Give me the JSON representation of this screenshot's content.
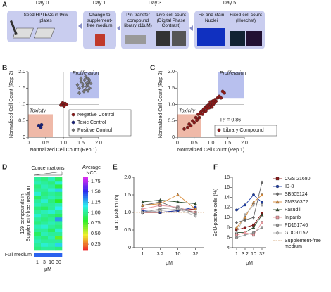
{
  "workflow": {
    "panel_label": "A",
    "days": [
      "Day 0",
      "Day 1",
      "Day 3",
      "Day 5"
    ],
    "steps": [
      "Seed HPTECs in 96w plates",
      "Change to supplement-free medium",
      "Pin-transfer compound library (11uM)",
      "Live-cell count (Digital Phase Contrast)",
      "Fix and stain Nuclei",
      "Fixed-cell count (Hoechst)"
    ]
  },
  "chart_data": [
    {
      "type": "scatter",
      "panel_label": "B",
      "xlabel": "Normalized Cell Count (Rep 1)",
      "ylabel": "Normalized Cell Count (Rep 2)",
      "xlim": [
        0,
        2
      ],
      "ylim": [
        0,
        2
      ],
      "xticks": [
        0,
        0.5,
        {
          "value": 1,
          "label": "1.0"
        },
        1.5,
        {
          "value": 2,
          "label": "2.0"
        }
      ],
      "yticks": [
        0,
        0.5,
        {
          "value": 1,
          "label": "1.0"
        },
        1.5,
        {
          "value": 2,
          "label": "2.0"
        }
      ],
      "reference": 1,
      "thresholds": {
        "low": 0.7,
        "high": 1.2
      },
      "annotations": {
        "proliferation": "Proliferation",
        "toxicity": "Toxicity"
      },
      "legend": "lower right",
      "series": [
        {
          "name": "Negative Control",
          "color": "#8b1a1a",
          "marker": "circle",
          "x": [
            0.95,
            1.0,
            1.05,
            0.98,
            1.02,
            1.08,
            0.93
          ],
          "values": [
            1.0,
            0.97,
            1.03,
            1.05,
            0.95,
            1.0,
            0.98
          ]
        },
        {
          "name": "Toxic Control",
          "color": "#1a237e",
          "marker": "circle",
          "x": [
            0.32,
            0.35,
            0.38,
            0.3,
            0.36
          ],
          "values": [
            0.35,
            0.32,
            0.38,
            0.36,
            0.3
          ]
        },
        {
          "name": "Positive Control",
          "color": "#777777",
          "marker": "diamond",
          "x": [
            1.4,
            1.45,
            1.5,
            1.55,
            1.6,
            1.62,
            1.65,
            1.68,
            1.7,
            1.72,
            1.75,
            1.78,
            1.5,
            1.58,
            1.66,
            1.74,
            1.45,
            1.55,
            1.63,
            1.7
          ],
          "values": [
            1.6,
            1.5,
            1.7,
            1.55,
            1.75,
            1.45,
            1.65,
            1.8,
            1.6,
            1.7,
            1.5,
            1.65,
            1.8,
            1.4,
            1.55,
            1.75,
            1.35,
            1.62,
            1.85,
            1.42
          ]
        }
      ]
    },
    {
      "type": "scatter",
      "panel_label": "C",
      "xlabel": "Normalized Cell Count (Rep 1)",
      "ylabel": "Normalized Cell Count (Rep 2)",
      "xlim": [
        0,
        2
      ],
      "ylim": [
        0,
        2
      ],
      "xticks": [
        0,
        0.5,
        {
          "value": 1,
          "label": "1.0"
        },
        1.5,
        {
          "value": 2,
          "label": "2.0"
        }
      ],
      "yticks": [
        0,
        0.5,
        {
          "value": 1,
          "label": "1.0"
        },
        1.5,
        {
          "value": 2,
          "label": "2.0"
        }
      ],
      "reference": 1,
      "thresholds": {
        "low": 0.7,
        "high": 1.2
      },
      "annotations": {
        "proliferation": "Proliferation",
        "toxicity": "Toxicity",
        "fit": "R² = 0.86"
      },
      "legend": "lower right",
      "series": [
        {
          "name": "Library Compound",
          "color": "#8b1a1a",
          "marker": "circle",
          "x": [
            0.2,
            0.3,
            0.35,
            0.4,
            0.45,
            0.5,
            0.55,
            0.6,
            0.62,
            0.65,
            0.7,
            0.72,
            0.75,
            0.78,
            0.8,
            0.82,
            0.85,
            0.87,
            0.9,
            0.92,
            0.95,
            0.97,
            1.0,
            1.02,
            1.05,
            1.07,
            1.1,
            1.12,
            1.15,
            1.2,
            1.25,
            1.3,
            1.35,
            1.4,
            0.98,
            1.03,
            0.88,
            1.08,
            0.68,
            0.58
          ],
          "values": [
            0.25,
            0.3,
            0.4,
            0.35,
            0.5,
            0.45,
            0.6,
            0.55,
            0.7,
            0.6,
            0.72,
            0.8,
            0.7,
            0.85,
            0.78,
            0.9,
            0.8,
            0.95,
            0.88,
            0.98,
            0.9,
            1.02,
            1.0,
            0.95,
            1.1,
            1.0,
            1.05,
            1.15,
            1.1,
            1.2,
            1.25,
            1.2,
            1.4,
            1.35,
            1.08,
            0.92,
            0.95,
            1.12,
            0.75,
            0.52
          ]
        }
      ]
    },
    {
      "type": "heatmap",
      "panel_label": "D",
      "title": "Concentrations",
      "colorbar_title": [
        "Average",
        "NCC"
      ],
      "ylabel": [
        "129 compounds in",
        "Supplement-free medium"
      ],
      "xlabel": "μM",
      "categories": [
        "1",
        "3",
        "10",
        "30"
      ],
      "clim": [
        0.1,
        1.85
      ],
      "colorbar_ticks": [
        {
          "value": 0.25,
          "label": "0.25"
        },
        {
          "value": 0.5,
          "label": "0.50"
        },
        {
          "value": 0.75,
          "label": "0.75"
        },
        {
          "value": 1,
          "label": "1.00"
        },
        {
          "value": 1.25,
          "label": "1.25"
        },
        {
          "value": 1.5,
          "label": "1.50"
        },
        {
          "value": 1.75,
          "label": "1.75"
        }
      ],
      "values": [
        [
          1.0,
          0.95,
          1.05,
          0.9
        ],
        [
          1.05,
          1.0,
          0.95,
          1.1
        ],
        [
          0.95,
          1.05,
          1.0,
          0.85
        ],
        [
          1.0,
          1.0,
          1.1,
          1.2
        ],
        [
          1.1,
          0.95,
          1.0,
          0.95
        ],
        [
          0.9,
          1.0,
          1.05,
          1.0
        ],
        [
          1.0,
          1.1,
          0.95,
          0.8
        ],
        [
          1.05,
          1.0,
          1.0,
          1.05
        ],
        [
          0.95,
          0.9,
          1.0,
          1.15
        ],
        [
          1.0,
          1.05,
          1.1,
          1.0
        ],
        [
          1.1,
          1.0,
          0.95,
          0.9
        ],
        [
          1.0,
          0.95,
          1.0,
          1.3
        ],
        [
          0.95,
          1.0,
          1.05,
          1.0
        ],
        [
          1.05,
          1.1,
          1.0,
          0.95
        ],
        [
          1.0,
          1.0,
          0.9,
          1.1
        ],
        [
          0.9,
          1.05,
          1.0,
          1.0
        ],
        [
          1.0,
          0.95,
          1.05,
          0.7
        ],
        [
          1.05,
          1.0,
          1.0,
          1.0
        ],
        [
          1.0,
          1.1,
          1.05,
          1.2
        ],
        [
          0.95,
          1.0,
          1.0,
          0.95
        ]
      ],
      "extra_row": {
        "label": "Full medium",
        "values": [
          1.4,
          1.4,
          1.4,
          1.4
        ]
      }
    },
    {
      "type": "line",
      "panel_label": "E",
      "ylabel": "NCC (48h to 0h)",
      "xlabel": "μM",
      "categories": [
        "1",
        "3.2",
        "10",
        "32"
      ],
      "ylim": [
        0,
        2
      ],
      "yticks": [
        0,
        0.5,
        {
          "value": 1,
          "label": "1.0"
        },
        1.5,
        {
          "value": 2,
          "label": "2.0"
        }
      ],
      "reference": {
        "value": 1,
        "color": "#d9b38c"
      },
      "series": [
        {
          "name": "CGS 21680",
          "color": "#8b1a1a",
          "marker": "square",
          "values": [
            1.0,
            1.0,
            1.05,
            1.1
          ]
        },
        {
          "name": "ID-8",
          "color": "#1f3fa8",
          "marker": "circle",
          "values": [
            1.05,
            1.0,
            1.05,
            1.15
          ]
        },
        {
          "name": "SB505124",
          "color": "#666666",
          "marker": "diamond",
          "values": [
            1.2,
            1.3,
            1.1,
            1.0
          ]
        },
        {
          "name": "ZM336372",
          "color": "#d98c3a",
          "marker": "triangle",
          "values": [
            1.2,
            1.25,
            1.5,
            1.1
          ]
        },
        {
          "name": "Fasudil",
          "color": "#2f4f2f",
          "marker": "triangle",
          "values": [
            1.3,
            1.35,
            1.3,
            1.25
          ]
        },
        {
          "name": "Iniparib",
          "color": "#e89aa0",
          "marker": "square",
          "values": [
            1.1,
            1.2,
            1.15,
            1.0
          ]
        },
        {
          "name": "PD151746",
          "color": "#999999",
          "marker": "circle",
          "values": [
            1.0,
            1.1,
            1.15,
            0.95
          ]
        },
        {
          "name": "GDC-0152",
          "color": "#bbbbbb",
          "marker": "diamond",
          "values": [
            1.0,
            1.05,
            1.1,
            0.9
          ]
        }
      ]
    },
    {
      "type": "line",
      "panel_label": "F",
      "ylabel": "EdU-positive cells (%)",
      "xlabel": "μM",
      "categories": [
        "1",
        "3.2",
        "10",
        "32"
      ],
      "ylim": [
        4,
        18
      ],
      "yticks": [
        4,
        6,
        8,
        10,
        12,
        14,
        16,
        18
      ],
      "reference": {
        "name": "Supplement-free medium",
        "value": 6.3,
        "color": "#d9b38c"
      },
      "legend": "right",
      "series": [
        {
          "name": "CGS 21680",
          "color": "#8b1a1a",
          "marker": "square",
          "values": [
            7.5,
            8,
            8.5,
            10.8
          ]
        },
        {
          "name": "ID-8",
          "color": "#1f3fa8",
          "marker": "circle",
          "values": [
            11.5,
            12.5,
            14.5,
            13
          ]
        },
        {
          "name": "SB505124",
          "color": "#666666",
          "marker": "diamond",
          "values": [
            9,
            9.5,
            10,
            17
          ]
        },
        {
          "name": "ZM336372",
          "color": "#d98c3a",
          "marker": "triangle",
          "values": [
            8,
            10,
            13,
            14.5
          ]
        },
        {
          "name": "Fasudil",
          "color": "#2f4f2f",
          "marker": "triangle",
          "values": [
            7,
            7,
            8,
            10.5
          ]
        },
        {
          "name": "Iniparib",
          "color": "#e89aa0",
          "marker": "square",
          "values": [
            6.5,
            7,
            6.5,
            9
          ]
        },
        {
          "name": "PD151746",
          "color": "#999999",
          "marker": "circle",
          "values": [
            6,
            6.5,
            7,
            8
          ]
        },
        {
          "name": "GDC-0152",
          "color": "#bbbbbb",
          "marker": "diamond",
          "values": [
            7,
            10.5,
            12.5,
            12.5
          ]
        }
      ]
    }
  ]
}
